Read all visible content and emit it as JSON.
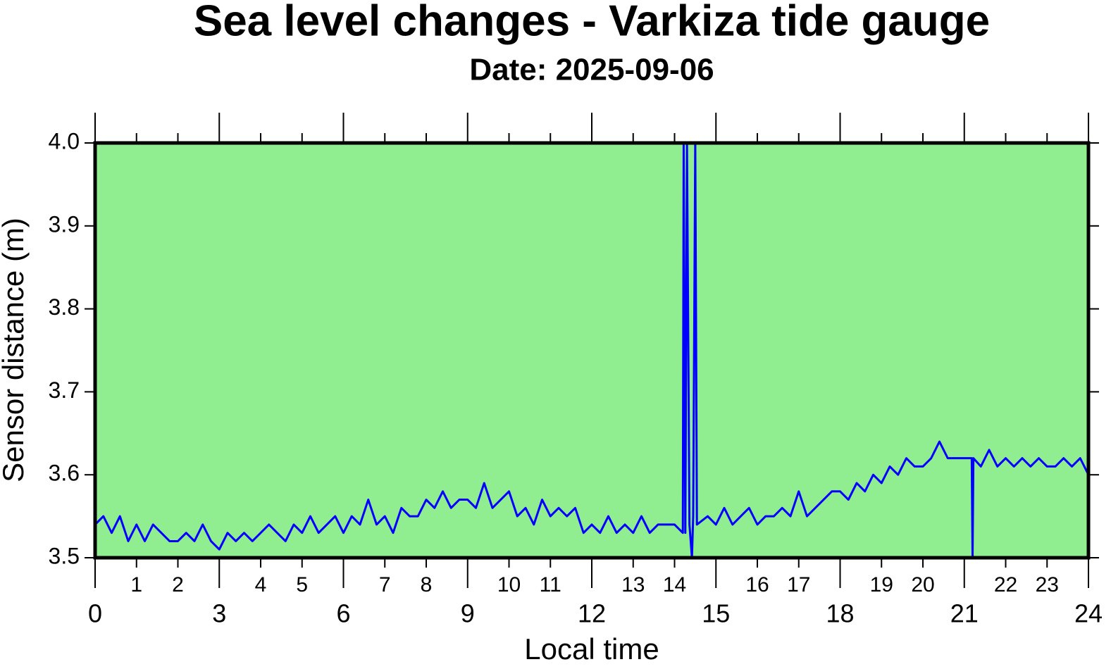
{
  "chart_data": {
    "type": "line",
    "title": "Sea level changes - Varkiza tide gauge",
    "subtitle": "Date: 2025-09-06",
    "xlabel": "Local time",
    "ylabel": "Sensor distance (m)",
    "background": "#90ee90",
    "xlim": [
      0,
      24
    ],
    "xticks": [
      0,
      3,
      6,
      9,
      12,
      15,
      18,
      21,
      24
    ],
    "xminor_ticks": [
      1,
      2,
      4,
      5,
      7,
      8,
      10,
      11,
      13,
      14,
      16,
      17,
      19,
      20,
      22,
      23
    ],
    "ylim": [
      3.5,
      4
    ],
    "yticks": [
      3.5,
      3.6,
      3.7,
      3.8,
      3.9,
      {
        "value": 4,
        "label": "4.0"
      }
    ],
    "x": [
      0,
      0.2,
      0.4,
      0.6,
      0.8,
      1.0,
      1.2,
      1.4,
      1.6,
      1.8,
      2.0,
      2.2,
      2.4,
      2.6,
      2.8,
      3.0,
      3.2,
      3.4,
      3.6,
      3.8,
      4.0,
      4.2,
      4.4,
      4.6,
      4.8,
      5.0,
      5.2,
      5.4,
      5.6,
      5.8,
      6.0,
      6.2,
      6.4,
      6.6,
      6.8,
      7.0,
      7.2,
      7.4,
      7.6,
      7.8,
      8.0,
      8.2,
      8.4,
      8.6,
      8.8,
      9.0,
      9.2,
      9.4,
      9.6,
      9.8,
      10.0,
      10.2,
      10.4,
      10.6,
      10.8,
      11.0,
      11.2,
      11.4,
      11.6,
      11.8,
      12.0,
      12.2,
      12.4,
      12.6,
      12.8,
      13.0,
      13.2,
      13.4,
      13.6,
      13.8,
      14.0,
      14.2,
      14.22,
      14.26,
      14.3,
      14.36,
      14.42,
      14.45,
      14.5,
      14.54,
      14.8,
      15.0,
      15.2,
      15.4,
      15.6,
      15.8,
      16.0,
      16.2,
      16.4,
      16.6,
      16.8,
      17.0,
      17.2,
      17.4,
      17.6,
      17.8,
      18.0,
      18.2,
      18.4,
      18.6,
      18.8,
      19.0,
      19.2,
      19.4,
      19.6,
      19.8,
      20.0,
      20.2,
      20.4,
      20.6,
      20.8,
      21.0,
      21.18,
      21.2,
      21.22,
      21.4,
      21.6,
      21.8,
      22.0,
      22.2,
      22.4,
      22.6,
      22.8,
      23.0,
      23.2,
      23.4,
      23.6,
      23.8,
      24.0
    ],
    "series": [
      {
        "color": "#0000ff",
        "values": [
          3.54,
          3.55,
          3.53,
          3.55,
          3.52,
          3.54,
          3.52,
          3.54,
          3.53,
          3.52,
          3.52,
          3.53,
          3.52,
          3.54,
          3.52,
          3.51,
          3.53,
          3.52,
          3.53,
          3.52,
          3.53,
          3.54,
          3.53,
          3.52,
          3.54,
          3.53,
          3.55,
          3.53,
          3.54,
          3.55,
          3.53,
          3.55,
          3.54,
          3.57,
          3.54,
          3.55,
          3.53,
          3.56,
          3.55,
          3.55,
          3.57,
          3.56,
          3.58,
          3.56,
          3.57,
          3.57,
          3.56,
          3.59,
          3.56,
          3.57,
          3.58,
          3.55,
          3.56,
          3.54,
          3.57,
          3.55,
          3.56,
          3.55,
          3.56,
          3.53,
          3.54,
          3.53,
          3.55,
          3.53,
          3.54,
          3.53,
          3.55,
          3.53,
          3.54,
          3.54,
          3.54,
          3.53,
          4.0,
          3.53,
          4.0,
          3.54,
          3.5,
          3.55,
          4.0,
          3.54,
          3.55,
          3.54,
          3.56,
          3.54,
          3.55,
          3.56,
          3.54,
          3.55,
          3.55,
          3.56,
          3.55,
          3.58,
          3.55,
          3.56,
          3.57,
          3.58,
          3.58,
          3.57,
          3.59,
          3.58,
          3.6,
          3.59,
          3.61,
          3.6,
          3.62,
          3.61,
          3.61,
          3.62,
          3.64,
          3.62,
          3.62,
          3.62,
          3.62,
          3.5,
          3.62,
          3.61,
          3.63,
          3.61,
          3.62,
          3.61,
          3.62,
          3.61,
          3.62,
          3.61,
          3.61,
          3.62,
          3.61,
          3.62,
          3.6
        ]
      }
    ]
  }
}
